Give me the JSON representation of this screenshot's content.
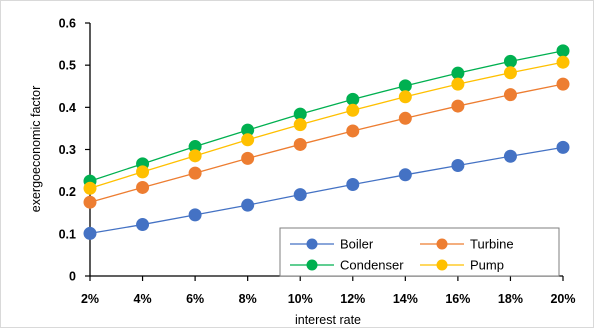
{
  "chart_data": {
    "type": "line",
    "title": "",
    "xlabel": "interest rate",
    "ylabel": "exergoeconomic factor",
    "categories": [
      "2%",
      "4%",
      "6%",
      "8%",
      "10%",
      "12%",
      "14%",
      "16%",
      "18%",
      "20%"
    ],
    "ylim": [
      0,
      0.6
    ],
    "yticks": [
      "0",
      "0.1",
      "0.2",
      "0.3",
      "0.4",
      "0.5",
      "0.6"
    ],
    "ytick_values": [
      0,
      0.1,
      0.2,
      0.3,
      0.4,
      0.5,
      0.6
    ],
    "grid": false,
    "legend_position": "bottom-right",
    "series": [
      {
        "name": "Boiler",
        "color": "#4472c4",
        "values": [
          0.101,
          0.122,
          0.145,
          0.168,
          0.193,
          0.217,
          0.24,
          0.262,
          0.284,
          0.305
        ]
      },
      {
        "name": "Turbine",
        "color": "#ed7d31",
        "values": [
          0.175,
          0.21,
          0.244,
          0.279,
          0.312,
          0.344,
          0.374,
          0.403,
          0.43,
          0.455
        ]
      },
      {
        "name": "Condenser",
        "color": "#00b050",
        "values": [
          0.225,
          0.266,
          0.307,
          0.346,
          0.384,
          0.419,
          0.451,
          0.481,
          0.509,
          0.534
        ]
      },
      {
        "name": "Pump",
        "color": "#ffc000",
        "values": [
          0.208,
          0.247,
          0.285,
          0.323,
          0.359,
          0.393,
          0.425,
          0.455,
          0.482,
          0.507
        ]
      }
    ],
    "legend_order": [
      "Boiler",
      "Turbine",
      "Condenser",
      "Pump"
    ]
  }
}
